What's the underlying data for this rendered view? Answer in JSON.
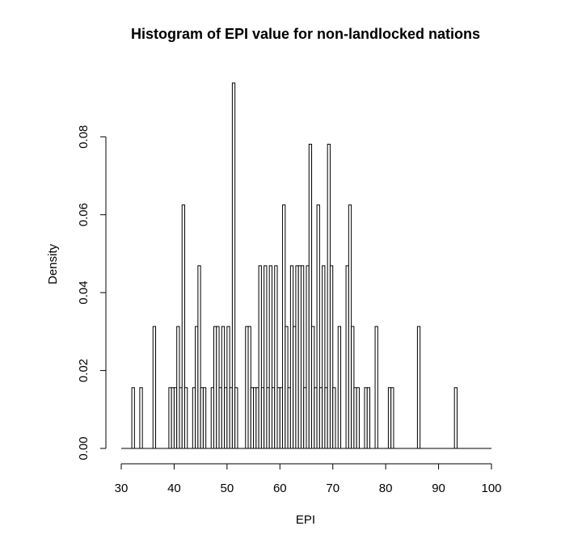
{
  "chart_data": {
    "type": "bar",
    "title": "Histogram of EPI value for non-landlocked nations",
    "xlabel": "EPI",
    "ylabel": "Density",
    "xlim": [
      30,
      100
    ],
    "ylim": [
      0,
      0.095
    ],
    "x_ticks": [
      "30",
      "40",
      "50",
      "60",
      "70",
      "80",
      "90",
      "100"
    ],
    "y_ticks": [
      "0.00",
      "0.02",
      "0.04",
      "0.06",
      "0.08"
    ],
    "bin_width": 0.5,
    "grid": false,
    "colors": {
      "bar_fill": "#ffffff",
      "bar_stroke": "#000000",
      "axis": "#000000"
    },
    "bins": [
      {
        "x": 32.0,
        "y": 0.0156
      },
      {
        "x": 33.5,
        "y": 0.0156
      },
      {
        "x": 36.0,
        "y": 0.0313
      },
      {
        "x": 39.0,
        "y": 0.0156
      },
      {
        "x": 39.5,
        "y": 0.0156
      },
      {
        "x": 40.0,
        "y": 0.0156
      },
      {
        "x": 40.5,
        "y": 0.0313
      },
      {
        "x": 41.0,
        "y": 0.0156
      },
      {
        "x": 41.5,
        "y": 0.0625
      },
      {
        "x": 42.0,
        "y": 0.0156
      },
      {
        "x": 43.5,
        "y": 0.0156
      },
      {
        "x": 44.0,
        "y": 0.0313
      },
      {
        "x": 44.5,
        "y": 0.0469
      },
      {
        "x": 45.0,
        "y": 0.0156
      },
      {
        "x": 45.5,
        "y": 0.0156
      },
      {
        "x": 47.0,
        "y": 0.0156
      },
      {
        "x": 47.5,
        "y": 0.0313
      },
      {
        "x": 48.0,
        "y": 0.0313
      },
      {
        "x": 48.5,
        "y": 0.0156
      },
      {
        "x": 49.0,
        "y": 0.0313
      },
      {
        "x": 49.5,
        "y": 0.0156
      },
      {
        "x": 50.0,
        "y": 0.0313
      },
      {
        "x": 50.5,
        "y": 0.0156
      },
      {
        "x": 51.0,
        "y": 0.0938
      },
      {
        "x": 51.5,
        "y": 0.0156
      },
      {
        "x": 53.5,
        "y": 0.0313
      },
      {
        "x": 54.0,
        "y": 0.0313
      },
      {
        "x": 54.5,
        "y": 0.0156
      },
      {
        "x": 55.0,
        "y": 0.0156
      },
      {
        "x": 55.5,
        "y": 0.0156
      },
      {
        "x": 56.0,
        "y": 0.0469
      },
      {
        "x": 56.5,
        "y": 0.0156
      },
      {
        "x": 57.0,
        "y": 0.0469
      },
      {
        "x": 57.5,
        "y": 0.0156
      },
      {
        "x": 58.0,
        "y": 0.0469
      },
      {
        "x": 58.5,
        "y": 0.0156
      },
      {
        "x": 59.0,
        "y": 0.0469
      },
      {
        "x": 59.5,
        "y": 0.0156
      },
      {
        "x": 60.0,
        "y": 0.0156
      },
      {
        "x": 60.5,
        "y": 0.0625
      },
      {
        "x": 61.0,
        "y": 0.0313
      },
      {
        "x": 61.5,
        "y": 0.0156
      },
      {
        "x": 62.0,
        "y": 0.0469
      },
      {
        "x": 62.5,
        "y": 0.0313
      },
      {
        "x": 63.0,
        "y": 0.0469
      },
      {
        "x": 63.5,
        "y": 0.0469
      },
      {
        "x": 64.0,
        "y": 0.0469
      },
      {
        "x": 64.5,
        "y": 0.0156
      },
      {
        "x": 65.0,
        "y": 0.0469
      },
      {
        "x": 65.5,
        "y": 0.0781
      },
      {
        "x": 66.0,
        "y": 0.0313
      },
      {
        "x": 66.5,
        "y": 0.0156
      },
      {
        "x": 67.0,
        "y": 0.0625
      },
      {
        "x": 67.5,
        "y": 0.0156
      },
      {
        "x": 68.0,
        "y": 0.0469
      },
      {
        "x": 68.5,
        "y": 0.0156
      },
      {
        "x": 69.0,
        "y": 0.0781
      },
      {
        "x": 69.5,
        "y": 0.0469
      },
      {
        "x": 70.0,
        "y": 0.0156
      },
      {
        "x": 71.0,
        "y": 0.0313
      },
      {
        "x": 72.5,
        "y": 0.0469
      },
      {
        "x": 73.0,
        "y": 0.0625
      },
      {
        "x": 73.5,
        "y": 0.0313
      },
      {
        "x": 74.0,
        "y": 0.0156
      },
      {
        "x": 74.5,
        "y": 0.0156
      },
      {
        "x": 76.0,
        "y": 0.0156
      },
      {
        "x": 76.5,
        "y": 0.0156
      },
      {
        "x": 78.0,
        "y": 0.0313
      },
      {
        "x": 80.5,
        "y": 0.0156
      },
      {
        "x": 81.0,
        "y": 0.0156
      },
      {
        "x": 86.0,
        "y": 0.0313
      },
      {
        "x": 93.0,
        "y": 0.0156
      }
    ]
  }
}
